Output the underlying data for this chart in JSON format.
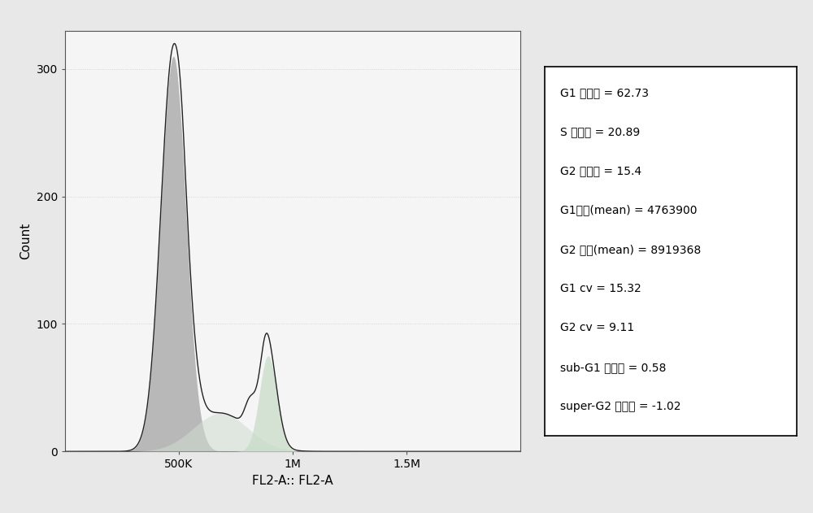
{
  "title": "",
  "xlabel": "FL2-A:: FL2-A",
  "ylabel": "Count",
  "xlim": [
    0,
    2000000
  ],
  "ylim": [
    0,
    330
  ],
  "xticks": [
    500000,
    1000000,
    1500000
  ],
  "xticklabels": [
    "500K",
    "1M",
    "1.5M"
  ],
  "yticks": [
    0,
    100,
    200,
    300
  ],
  "g1_mean": 476000,
  "g1_std": 55000,
  "g1_height": 310,
  "g2_mean": 892000,
  "g2_std": 38000,
  "g2_height": 75,
  "s_mean": 684000,
  "s_std": 120000,
  "s_height": 30,
  "g1_color": "#b8b8b8",
  "g2_color": "#c8dcc8",
  "s_color": "#d0dcd0",
  "line_color": "#222222",
  "bg_color": "#e8e8e8",
  "plot_bg_color": "#f5f5f5",
  "figsize": [
    10.0,
    6.31
  ],
  "dpi": 100,
  "legend_lines": [
    "G1 百分比 = 62.73",
    "S 百分比 = 20.89",
    "G2 百分比 = 15.4",
    "G1均数(mean) = 4763900",
    "G2 均数(mean) = 8919368",
    "G1 cv = 15.32",
    "G2 cv = 9.11",
    "sub-G1 百分比 = 0.58",
    "super-G2 百分比 = -1.02"
  ]
}
